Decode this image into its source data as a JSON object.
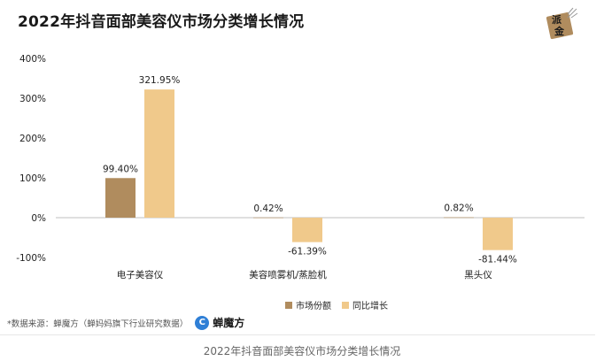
{
  "logo": {
    "line1": "派",
    "line2": "金"
  },
  "legend": {
    "share_label": "市场份额",
    "growth_label": "同比增长"
  },
  "source": {
    "text": "*数据来源：蝉魔方（蝉妈妈旗下行业研究数据）",
    "brand": "蝉魔方",
    "brand_icon": "C"
  },
  "caption": "2022年抖音面部美容仪市场分类增长情况",
  "colors": {
    "share": "#b08c5e",
    "growth": "#f0c98b",
    "axis_text": "#222222",
    "zero_line": "#bfbfbf"
  },
  "chart_data": {
    "type": "bar",
    "title": "2022年抖音面部美容仪市场分类增长情况",
    "xlabel": "",
    "ylabel": "",
    "categories": [
      "电子美容仪",
      "美容喷雾机/蒸脸机",
      "黑头仪"
    ],
    "series": [
      {
        "name": "市场份额",
        "values": [
          99.4,
          0.42,
          0.82
        ],
        "labels": [
          "99.40%",
          "0.42%",
          "0.82%"
        ]
      },
      {
        "name": "同比增长",
        "values": [
          321.95,
          -61.39,
          -81.44
        ],
        "labels": [
          "321.95%",
          "-61.39%",
          "-81.44%"
        ]
      }
    ],
    "yticks": [
      400,
      300,
      200,
      100,
      0,
      -100
    ],
    "ytick_labels": [
      "400%",
      "300%",
      "200%",
      "100%",
      "0%",
      "-100%"
    ],
    "ylim": [
      -100,
      400
    ],
    "grid": false,
    "legend_position": "bottom-center"
  }
}
